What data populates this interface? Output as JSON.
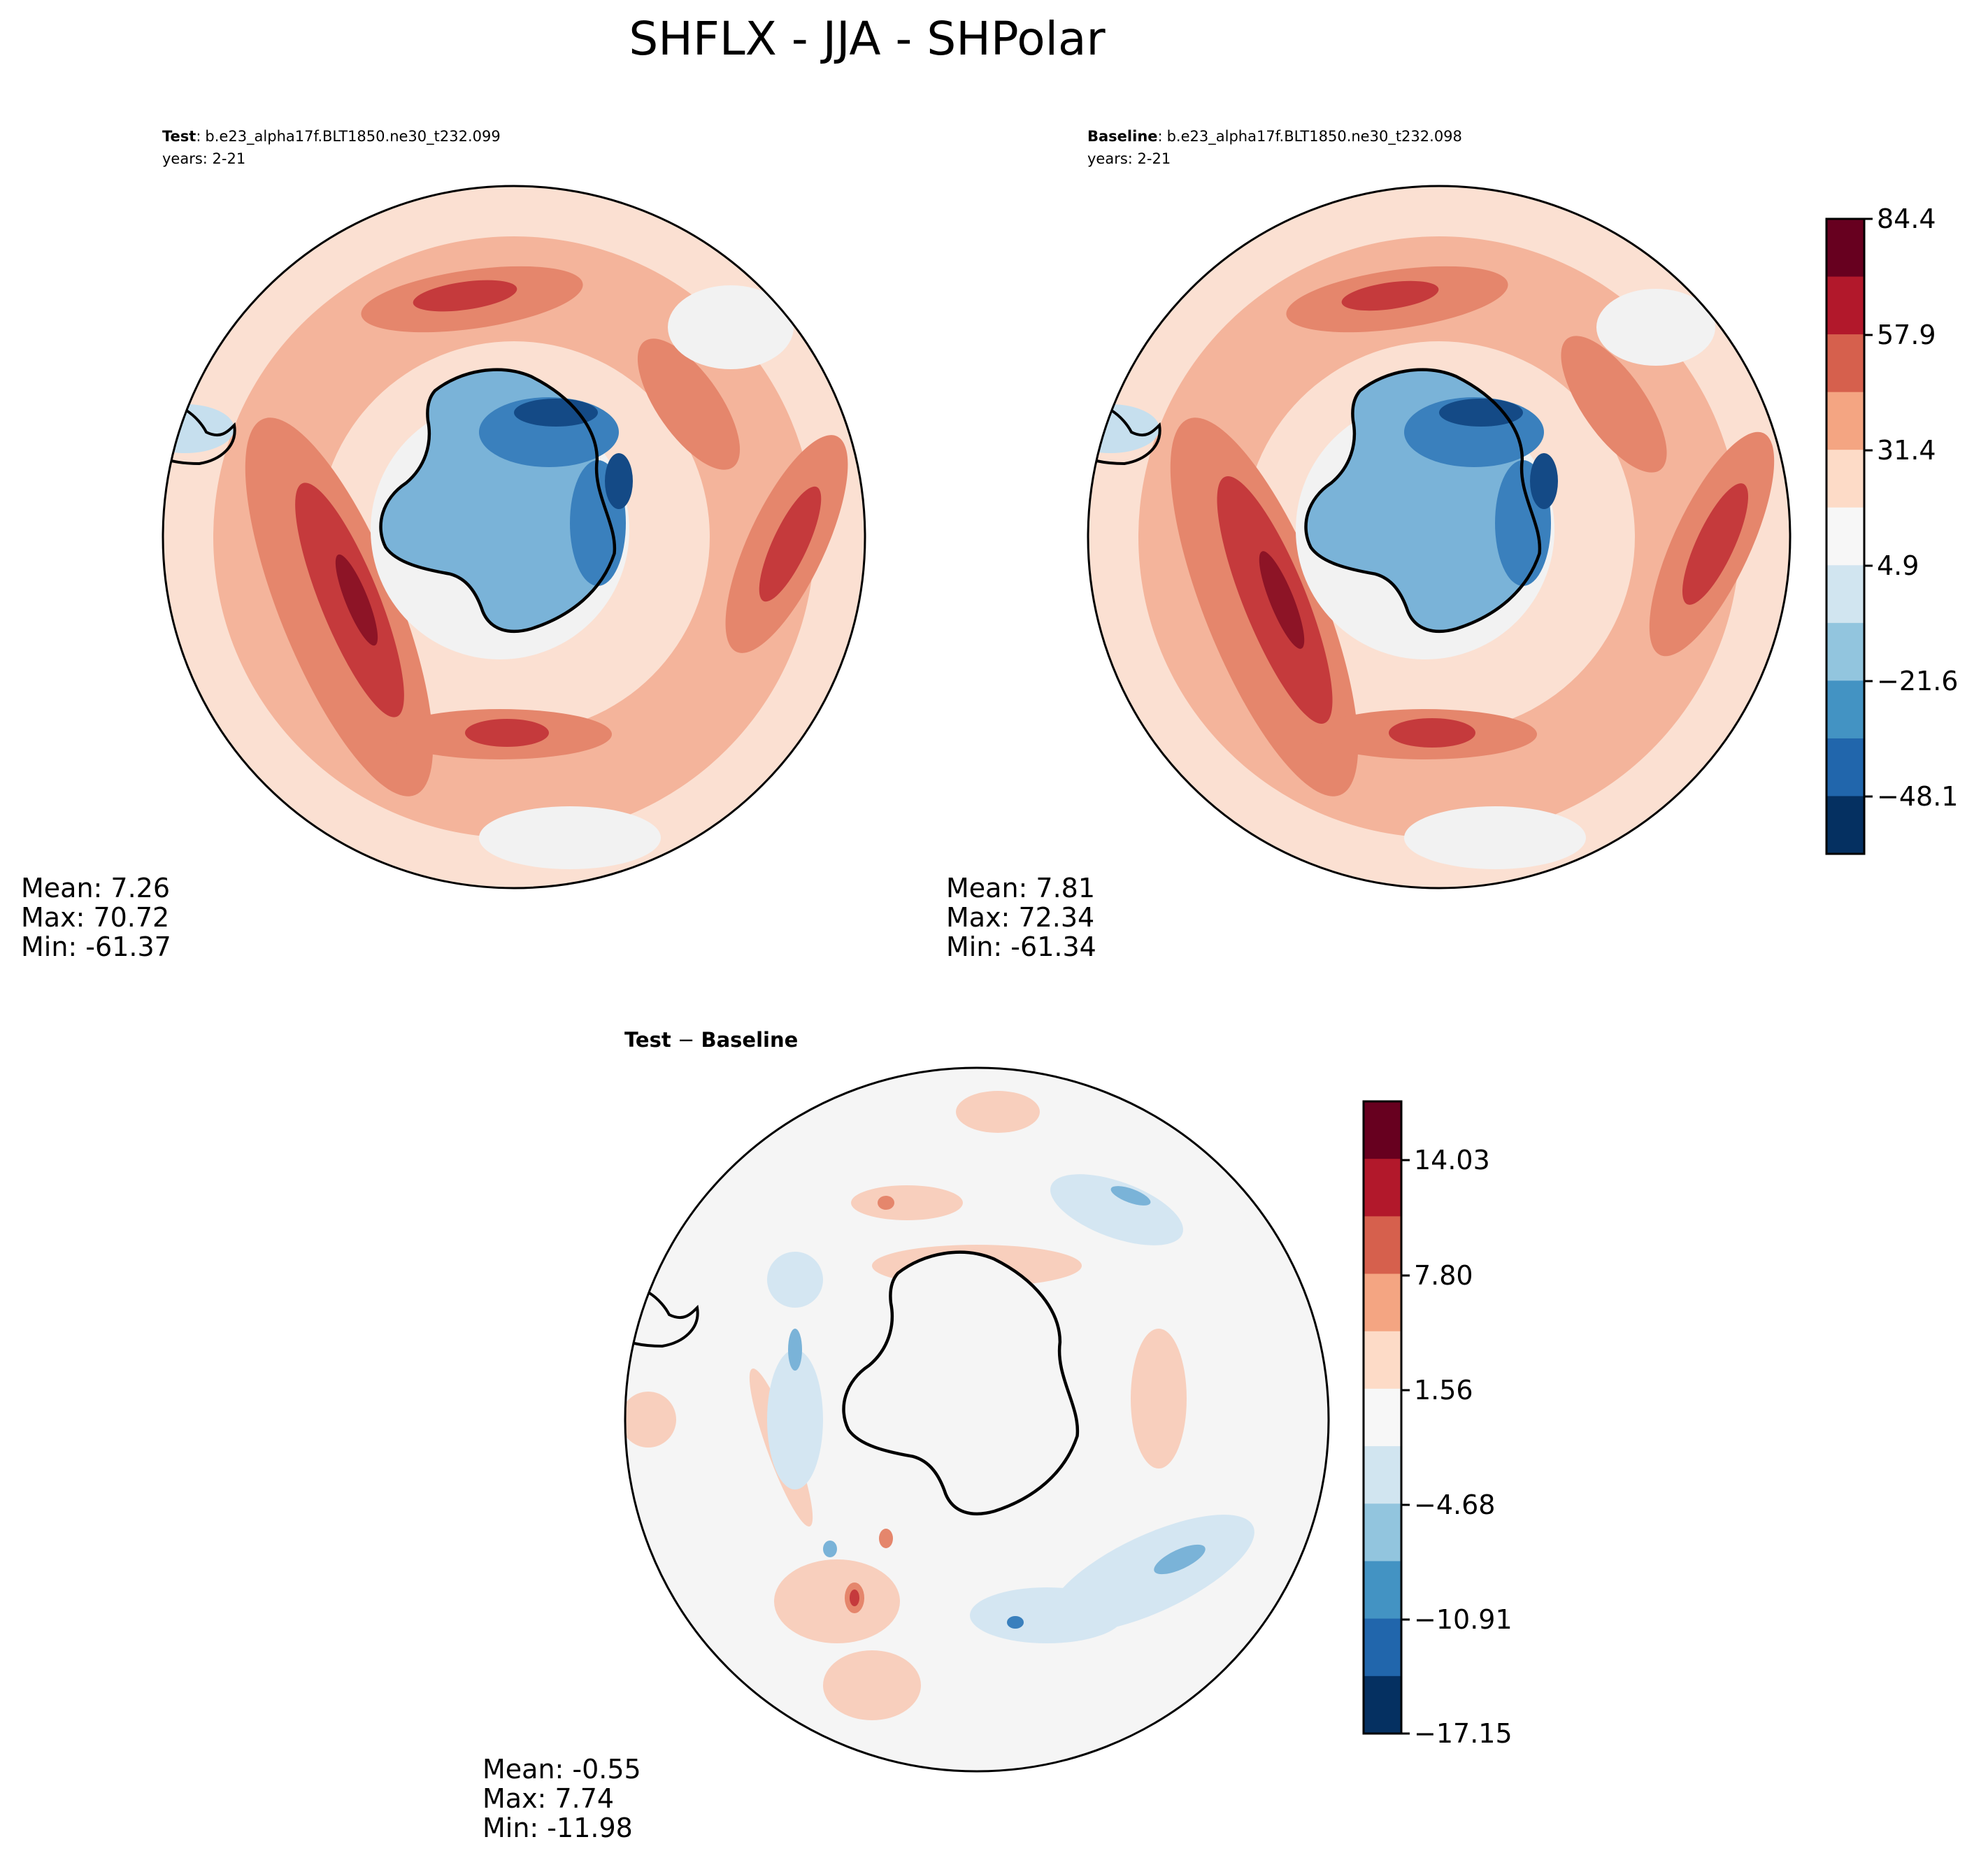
{
  "figure": {
    "title": "SHFLX - JJA - SHPolar"
  },
  "panels": [
    {
      "id": "test",
      "label_bold": "Test",
      "label_sep": ":",
      "label_case": "b.e23_alpha17f.BLT1850.ne30_t232.099",
      "label_years": "years: 2-21",
      "stats": {
        "mean": "Mean:  7.26",
        "max": "Max: 70.72",
        "min": "Min: -61.37"
      }
    },
    {
      "id": "baseline",
      "label_bold": "Baseline",
      "label_sep": ":",
      "label_case": "b.e23_alpha17f.BLT1850.ne30_t232.098",
      "label_years": "years: 2-21",
      "stats": {
        "mean": "Mean:  7.81",
        "max": "Max: 72.34",
        "min": "Min: -61.34"
      }
    },
    {
      "id": "diff",
      "label_bold": "Test",
      "label_sep": " − ",
      "label_bold2": "Baseline",
      "stats": {
        "mean": "Mean: -0.55",
        "max": "Max:  7.74",
        "min": "Min: -11.98"
      }
    }
  ],
  "colorbars": {
    "main": {
      "tick_labels": [
        "84.4",
        "57.9",
        "31.4",
        "4.9",
        "−21.6",
        "−48.1"
      ],
      "colors": [
        "#67001f",
        "#b2182b",
        "#d6604d",
        "#f4a582",
        "#fddbc7",
        "#f7f7f7",
        "#d1e5f0",
        "#92c5de",
        "#4393c3",
        "#2166ac",
        "#053061"
      ]
    },
    "diff": {
      "tick_labels": [
        "14.03",
        "7.80",
        "1.56",
        "−4.68",
        "−10.91",
        "−17.15"
      ],
      "colors": [
        "#67001f",
        "#b2182b",
        "#d6604d",
        "#f4a582",
        "#fddbc7",
        "#f7f7f7",
        "#d1e5f0",
        "#92c5de",
        "#4393c3",
        "#2166ac",
        "#053061"
      ]
    }
  },
  "palette": {
    "ocean_light": "#fbe0d2",
    "ocean_mid": "#f4b49b",
    "ocean_strong": "#e5866c",
    "ocean_dark": "#c53a3c",
    "ocean_darkest": "#8d1426",
    "neutral": "#f2f2f2",
    "ice_light": "#c6dfee",
    "land_mid": "#7ab3d8",
    "land_dark": "#3a80bd",
    "land_darkest": "#144a86",
    "diff_bg": "#f5f5f5",
    "diff_pos": "#f8cfbd",
    "diff_neg": "#d4e6f2"
  }
}
